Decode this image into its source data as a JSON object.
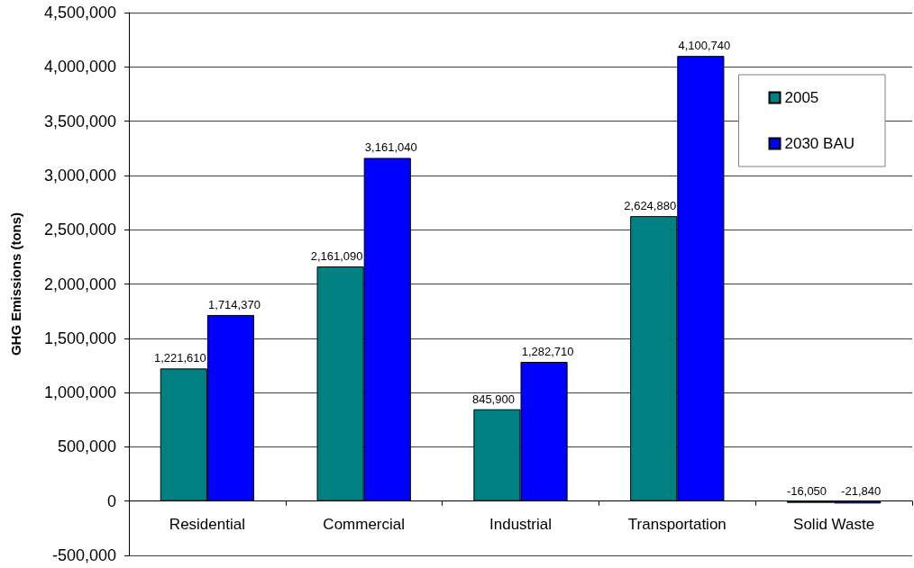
{
  "chart_data": {
    "type": "bar",
    "ylabel": "GHG Emissions (tons)",
    "categories": [
      "Residential",
      "Commercial",
      "Industrial",
      "Transportation",
      "Solid Waste"
    ],
    "series": [
      {
        "name": "2005",
        "color": "#008080",
        "values": [
          1221610,
          2161090,
          845900,
          2624880,
          -16050
        ],
        "value_labels": [
          "1,221,610",
          "2,161,090",
          "845,900",
          "2,624,880",
          "-16,050"
        ]
      },
      {
        "name": "2030 BAU",
        "color": "#0000ff",
        "values": [
          1714370,
          3161040,
          1282710,
          4100740,
          -21840
        ],
        "value_labels": [
          "1,714,370",
          "3,161,040",
          "1,282,710",
          "4,100,740",
          "-21,840"
        ]
      }
    ],
    "ylim": [
      -500000,
      4500000
    ],
    "yticks": [
      {
        "value": -500000,
        "label": "-500,000"
      },
      {
        "value": 0,
        "label": "0"
      },
      {
        "value": 500000,
        "label": "500,000"
      },
      {
        "value": 1000000,
        "label": "1,000,000"
      },
      {
        "value": 1500000,
        "label": "1,500,000"
      },
      {
        "value": 2000000,
        "label": "2,000,000"
      },
      {
        "value": 2500000,
        "label": "2,500,000"
      },
      {
        "value": 3000000,
        "label": "3,000,000"
      },
      {
        "value": 3500000,
        "label": "3,500,000"
      },
      {
        "value": 4000000,
        "label": "4,000,000"
      },
      {
        "value": 4500000,
        "label": "4,500,000"
      }
    ],
    "grid": "y",
    "legend": "top right"
  }
}
